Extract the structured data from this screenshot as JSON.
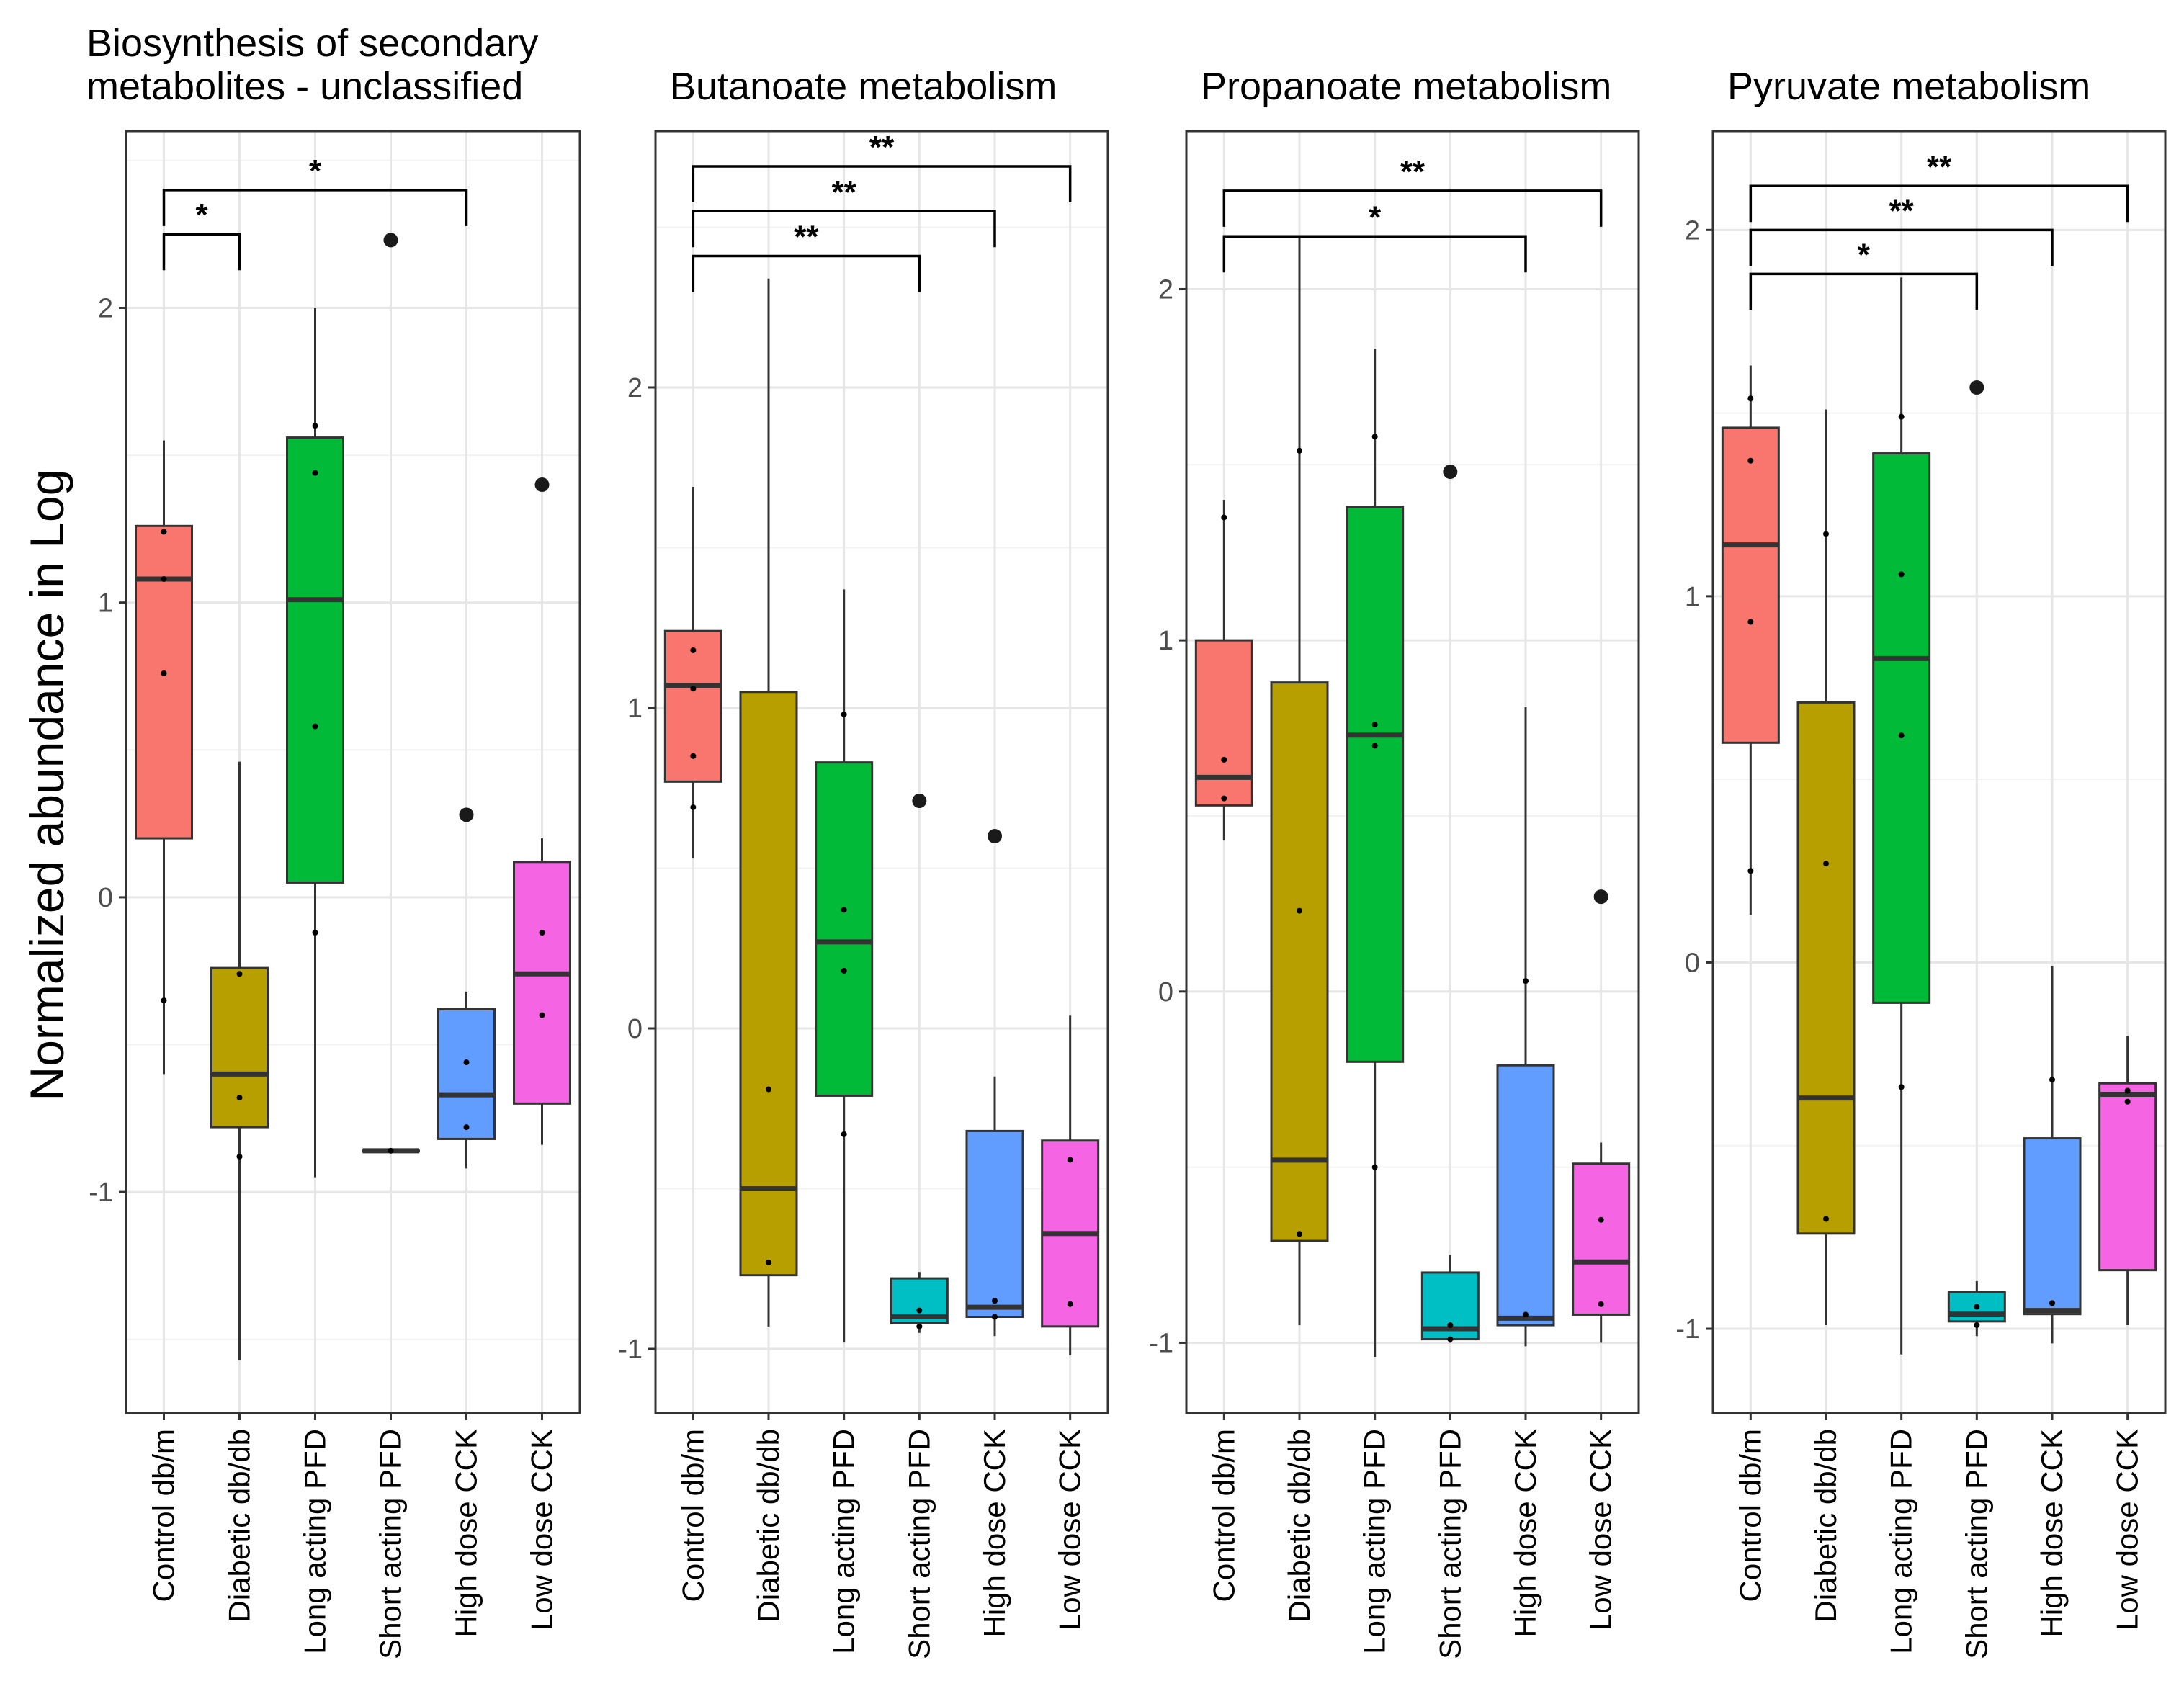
{
  "chart_data": [
    {
      "type": "boxplot",
      "title": "Biosynthesis of secondary metabolites - unclassified",
      "title_lines": [
        "Biosynthesis of secondary",
        "metabolites - unclassified"
      ],
      "ylabel": "Normalized abundance in Log",
      "ylim": [
        -1.75,
        2.6
      ],
      "yticks": [
        -1,
        0,
        1,
        2
      ],
      "ytick_labels": [
        "-1",
        "0",
        "1",
        "2"
      ],
      "categories": [
        "Control db/m",
        "Diabetic db/db",
        "Long acting PFD",
        "Short acting PFD",
        "High dose CCK",
        "Low dose CCK"
      ],
      "colors": [
        "#F8766D",
        "#B79F00",
        "#00BA38",
        "#00BFC4",
        "#619CFF",
        "#F564E3"
      ],
      "boxes": [
        {
          "q1": 0.2,
          "median": 1.08,
          "q3": 1.26,
          "whisker_low": -0.6,
          "whisker_high": 1.55,
          "outliers": [],
          "points": [
            1.24,
            1.08,
            0.76,
            -0.35
          ]
        },
        {
          "q1": -0.78,
          "median": -0.6,
          "q3": -0.24,
          "whisker_low": -1.57,
          "whisker_high": 0.46,
          "outliers": [],
          "points": [
            -0.26,
            -0.68,
            -0.88
          ]
        },
        {
          "q1": 0.05,
          "median": 1.01,
          "q3": 1.56,
          "whisker_low": -0.95,
          "whisker_high": 2.0,
          "outliers": [],
          "points": [
            1.6,
            1.44,
            0.58,
            -0.12
          ]
        },
        {
          "q1": -0.86,
          "median": -0.86,
          "q3": -0.86,
          "whisker_low": -0.86,
          "whisker_high": -0.86,
          "outliers": [
            2.23
          ],
          "points": [
            -0.86
          ]
        },
        {
          "q1": -0.82,
          "median": -0.67,
          "q3": -0.38,
          "whisker_low": -0.92,
          "whisker_high": -0.32,
          "outliers": [
            0.28
          ],
          "points": [
            -0.56,
            -0.78
          ]
        },
        {
          "q1": -0.7,
          "median": -0.26,
          "q3": 0.12,
          "whisker_low": -0.84,
          "whisker_high": 0.2,
          "outliers": [
            1.4
          ],
          "points": [
            -0.12,
            -0.4
          ]
        }
      ],
      "brackets": [
        {
          "from": 0,
          "to": 1,
          "y": 2.25,
          "label": "*"
        },
        {
          "from": 0,
          "to": 4,
          "y": 2.4,
          "label": "*"
        }
      ]
    },
    {
      "type": "boxplot",
      "title": "Butanoate metabolism",
      "title_lines": [
        "Butanoate metabolism"
      ],
      "ylim": [
        -1.2,
        2.8
      ],
      "yticks": [
        -1,
        0,
        1,
        2
      ],
      "ytick_labels": [
        "-1",
        "0",
        "1",
        "2"
      ],
      "categories": [
        "Control db/m",
        "Diabetic db/db",
        "Long acting PFD",
        "Short acting PFD",
        "High dose CCK",
        "Low dose CCK"
      ],
      "colors": [
        "#F8766D",
        "#B79F00",
        "#00BA38",
        "#00BFC4",
        "#619CFF",
        "#F564E3"
      ],
      "boxes": [
        {
          "q1": 0.77,
          "median": 1.07,
          "q3": 1.24,
          "whisker_low": 0.53,
          "whisker_high": 1.69,
          "outliers": [],
          "points": [
            1.18,
            1.06,
            0.85,
            0.69
          ]
        },
        {
          "q1": -0.77,
          "median": -0.5,
          "q3": 1.05,
          "whisker_low": -0.93,
          "whisker_high": 2.34,
          "outliers": [],
          "points": [
            -0.19,
            -0.73
          ]
        },
        {
          "q1": -0.21,
          "median": 0.27,
          "q3": 0.83,
          "whisker_low": -0.98,
          "whisker_high": 1.37,
          "outliers": [],
          "points": [
            0.98,
            0.37,
            0.18,
            -0.33
          ]
        },
        {
          "q1": -0.92,
          "median": -0.9,
          "q3": -0.78,
          "whisker_low": -0.95,
          "whisker_high": -0.76,
          "outliers": [
            0.71
          ],
          "points": [
            -0.88,
            -0.93
          ]
        },
        {
          "q1": -0.9,
          "median": -0.87,
          "q3": -0.32,
          "whisker_low": -0.96,
          "whisker_high": -0.15,
          "outliers": [
            0.6
          ],
          "points": [
            -0.85,
            -0.9
          ]
        },
        {
          "q1": -0.93,
          "median": -0.64,
          "q3": -0.35,
          "whisker_low": -1.02,
          "whisker_high": 0.04,
          "outliers": [],
          "points": [
            -0.41,
            -0.86
          ]
        }
      ],
      "brackets": [
        {
          "from": 0,
          "to": 3,
          "y": 2.41,
          "label": "**"
        },
        {
          "from": 0,
          "to": 4,
          "y": 2.55,
          "label": "**"
        },
        {
          "from": 0,
          "to": 5,
          "y": 2.69,
          "label": "**"
        }
      ]
    },
    {
      "type": "boxplot",
      "title": "Propanoate metabolism",
      "title_lines": [
        "Propanoate metabolism"
      ],
      "ylim": [
        -1.2,
        2.45
      ],
      "yticks": [
        -1,
        0,
        1,
        2
      ],
      "ytick_labels": [
        "-1",
        "0",
        "1",
        "2"
      ],
      "categories": [
        "Control db/m",
        "Diabetic db/db",
        "Long acting PFD",
        "Short acting PFD",
        "High dose CCK",
        "Low dose CCK"
      ],
      "colors": [
        "#F8766D",
        "#B79F00",
        "#00BA38",
        "#00BFC4",
        "#619CFF",
        "#F564E3"
      ],
      "boxes": [
        {
          "q1": 0.53,
          "median": 0.61,
          "q3": 1.0,
          "whisker_low": 0.43,
          "whisker_high": 1.4,
          "outliers": [],
          "points": [
            1.35,
            0.66,
            0.55
          ]
        },
        {
          "q1": -0.71,
          "median": -0.48,
          "q3": 0.88,
          "whisker_low": -0.95,
          "whisker_high": 2.15,
          "outliers": [],
          "points": [
            1.54,
            0.23,
            -0.69
          ]
        },
        {
          "q1": -0.2,
          "median": 0.73,
          "q3": 1.38,
          "whisker_low": -1.04,
          "whisker_high": 1.83,
          "outliers": [],
          "points": [
            1.58,
            0.76,
            0.7,
            -0.5
          ]
        },
        {
          "q1": -0.99,
          "median": -0.96,
          "q3": -0.8,
          "whisker_low": -1.0,
          "whisker_high": -0.75,
          "outliers": [
            1.48
          ],
          "points": [
            -0.95,
            -0.99
          ]
        },
        {
          "q1": -0.95,
          "median": -0.93,
          "q3": -0.21,
          "whisker_low": -1.01,
          "whisker_high": 0.81,
          "outliers": [],
          "points": [
            0.03,
            -0.92
          ]
        },
        {
          "q1": -0.92,
          "median": -0.77,
          "q3": -0.49,
          "whisker_low": -1.0,
          "whisker_high": -0.43,
          "outliers": [
            0.27
          ],
          "points": [
            -0.65,
            -0.89
          ]
        }
      ],
      "brackets": [
        {
          "from": 0,
          "to": 4,
          "y": 2.15,
          "label": "*"
        },
        {
          "from": 0,
          "to": 5,
          "y": 2.28,
          "label": "**"
        }
      ]
    },
    {
      "type": "boxplot",
      "title": "Pyruvate metabolism",
      "title_lines": [
        "Pyruvate metabolism"
      ],
      "ylim": [
        -1.23,
        2.27
      ],
      "yticks": [
        -1,
        0,
        1,
        2
      ],
      "ytick_labels": [
        "-1",
        "0",
        "1",
        "2"
      ],
      "categories": [
        "Control db/m",
        "Diabetic db/db",
        "Long acting PFD",
        "Short acting PFD",
        "High dose CCK",
        "Low dose CCK"
      ],
      "colors": [
        "#F8766D",
        "#B79F00",
        "#00BA38",
        "#00BFC4",
        "#619CFF",
        "#F564E3"
      ],
      "boxes": [
        {
          "q1": 0.6,
          "median": 1.14,
          "q3": 1.46,
          "whisker_low": 0.13,
          "whisker_high": 1.63,
          "outliers": [],
          "points": [
            1.54,
            1.37,
            0.93,
            0.25
          ]
        },
        {
          "q1": -0.74,
          "median": -0.37,
          "q3": 0.71,
          "whisker_low": -0.99,
          "whisker_high": 1.51,
          "outliers": [],
          "points": [
            1.17,
            0.27,
            -0.7
          ]
        },
        {
          "q1": -0.11,
          "median": 0.83,
          "q3": 1.39,
          "whisker_low": -1.07,
          "whisker_high": 1.87,
          "outliers": [],
          "points": [
            1.49,
            1.06,
            0.62,
            -0.34
          ]
        },
        {
          "q1": -0.98,
          "median": -0.96,
          "q3": -0.9,
          "whisker_low": -1.02,
          "whisker_high": -0.87,
          "outliers": [
            1.57
          ],
          "points": [
            -0.94,
            -0.99
          ]
        },
        {
          "q1": -0.96,
          "median": -0.95,
          "q3": -0.48,
          "whisker_low": -1.04,
          "whisker_high": -0.01,
          "outliers": [],
          "points": [
            -0.32,
            -0.93
          ]
        },
        {
          "q1": -0.84,
          "median": -0.36,
          "q3": -0.33,
          "whisker_low": -0.99,
          "whisker_high": -0.2,
          "outliers": [],
          "points": [
            -0.35,
            -0.38
          ]
        }
      ],
      "brackets": [
        {
          "from": 0,
          "to": 3,
          "y": 1.88,
          "label": "*"
        },
        {
          "from": 0,
          "to": 4,
          "y": 2.0,
          "label": "**"
        },
        {
          "from": 0,
          "to": 5,
          "y": 2.12,
          "label": "**"
        }
      ]
    }
  ]
}
